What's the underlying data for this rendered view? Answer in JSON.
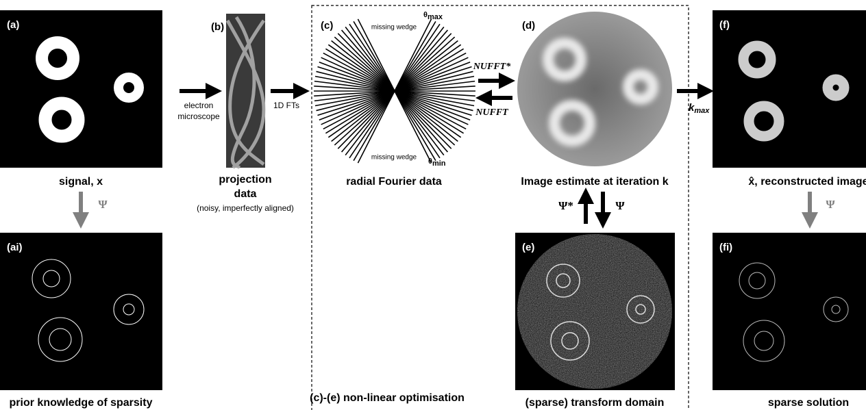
{
  "panels": {
    "a": {
      "label": "(a)",
      "caption": "signal, x"
    },
    "ai": {
      "label": "(ai)",
      "caption": "prior knowledge of sparsity"
    },
    "b": {
      "label": "(b)",
      "caption": [
        "projection",
        "data"
      ],
      "note": "(noisy, imperfectly aligned)"
    },
    "c": {
      "label": "(c)",
      "caption": "radial Fourier data",
      "wedge_top": "missing wedge",
      "wedge_bottom": "missing wedge",
      "theta_max": {
        "symbol": "θ",
        "sub": "max"
      },
      "theta_min": {
        "symbol": "θ",
        "sub": "min"
      }
    },
    "d": {
      "label": "(d)",
      "caption": "Image estimate at iteration k"
    },
    "e": {
      "label": "(e)",
      "caption": "(sparse) transform domain"
    },
    "f": {
      "label": "(f)",
      "caption": "x̂, reconstructed image"
    },
    "fi": {
      "label": "(fi)",
      "caption": "sparse solution"
    }
  },
  "arrows": {
    "a_to_ai": "Ψ",
    "microscope": [
      "electron",
      "microscope"
    ],
    "fourier": "1D FTs",
    "nufft_adjoint": "NUFFT*",
    "nufft": "NUFFT",
    "threshold": {
      "symbol": "k",
      "sub": "max"
    },
    "e_to_d": "Ψ*",
    "d_to_e": "Ψ",
    "f_to_fi": "Ψ"
  },
  "region": "(c)-(e) non-linear optimisation"
}
